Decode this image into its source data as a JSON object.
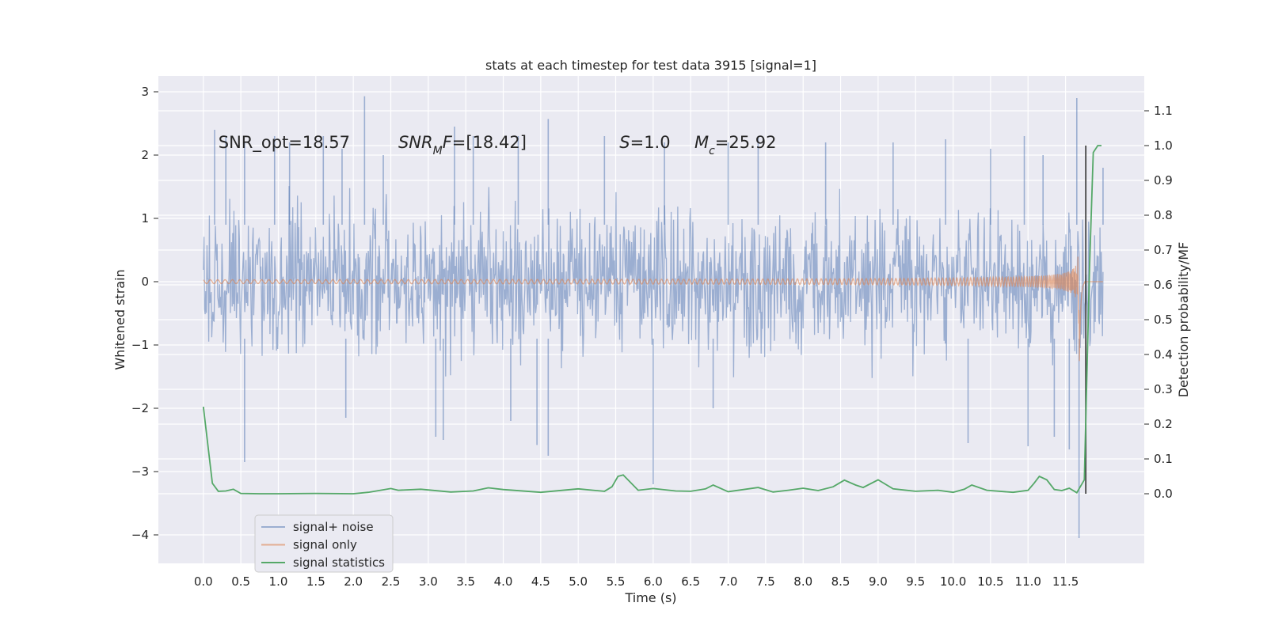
{
  "chart_data": {
    "type": "line",
    "title": "stats at each timestep for test data 3915 [signal=1]",
    "xlabel": "Time (s)",
    "ylabel": "Whitened strain",
    "y2label": "Detection probability/MF",
    "xlim": [
      -0.6,
      12.55
    ],
    "ylim": [
      -4.45,
      3.25
    ],
    "y2lim": [
      -0.2,
      1.2
    ],
    "x_ticks": [
      0.0,
      0.5,
      1.0,
      1.5,
      2.0,
      2.5,
      3.0,
      3.5,
      4.0,
      4.5,
      5.0,
      5.5,
      6.0,
      6.5,
      7.0,
      7.5,
      8.0,
      8.5,
      9.0,
      9.5,
      10.0,
      10.5,
      11.0,
      11.5
    ],
    "x_tick_labels": [
      "0.0",
      "0.5",
      "1.0",
      "1.5",
      "2.0",
      "2.5",
      "3.0",
      "3.5",
      "4.0",
      "4.5",
      "5.0",
      "5.5",
      "6.0",
      "6.5",
      "7.0",
      "7.5",
      "8.0",
      "8.5",
      "9.0",
      "9.5",
      "10.0",
      "10.5",
      "11.0",
      "11.5"
    ],
    "y_ticks": [
      -4,
      -3,
      -2,
      -1,
      0,
      1,
      2,
      3
    ],
    "y_tick_labels": [
      "−4",
      "−3",
      "−2",
      "−1",
      "0",
      "1",
      "2",
      "3"
    ],
    "y2_ticks": [
      0.0,
      0.1,
      0.2,
      0.3,
      0.4,
      0.5,
      0.6,
      0.7,
      0.8,
      0.9,
      1.0,
      1.1
    ],
    "y2_tick_labels": [
      "0.0",
      "0.1",
      "0.2",
      "0.3",
      "0.4",
      "0.5",
      "0.6",
      "0.7",
      "0.8",
      "0.9",
      "1.0",
      "1.1"
    ],
    "grid": true,
    "legend_position": "lower-left",
    "background": "#eaeaf2",
    "annotations": [
      {
        "parts": [
          {
            "t": "SNR_opt=18.57"
          }
        ],
        "x": 0.2,
        "y": 2.2
      },
      {
        "parts": [
          {
            "t": "SNR",
            "it": true
          },
          {
            "t": "M",
            "it": true,
            "sub": true
          },
          {
            "t": "F",
            "it": true
          },
          {
            "t": "=[18.42]"
          }
        ],
        "x": 2.6,
        "y": 2.2
      },
      {
        "parts": [
          {
            "t": "S",
            "it": true
          },
          {
            "t": "=1.0"
          }
        ],
        "x": 5.55,
        "y": 2.2
      },
      {
        "parts": [
          {
            "t": "M",
            "it": true
          },
          {
            "t": "c",
            "it": true,
            "sub": true
          },
          {
            "t": "=25.92"
          }
        ],
        "x": 6.55,
        "y": 2.2
      }
    ],
    "series": [
      {
        "name": "signal+ noise",
        "axis": "left",
        "color": "#4c72b0",
        "opacity": 0.5,
        "x_range": [
          0.0,
          12.0
        ],
        "envelope": {
          "typical": 1.15,
          "dense": 0.55
        },
        "peaks": [
          {
            "x": 0.15,
            "y": 2.4
          },
          {
            "x": 0.3,
            "y": 2.3
          },
          {
            "x": 0.55,
            "y": 2.2
          },
          {
            "x": 0.95,
            "y": 2.3
          },
          {
            "x": 1.15,
            "y": 2.2
          },
          {
            "x": 1.6,
            "y": 2.3
          },
          {
            "x": 1.85,
            "y": 2.1
          },
          {
            "x": 2.15,
            "y": 2.93
          },
          {
            "x": 2.4,
            "y": 2.0
          },
          {
            "x": 3.35,
            "y": 2.45
          },
          {
            "x": 3.6,
            "y": 2.3
          },
          {
            "x": 4.2,
            "y": 2.3
          },
          {
            "x": 4.6,
            "y": 2.57
          },
          {
            "x": 5.35,
            "y": 2.3
          },
          {
            "x": 6.15,
            "y": 2.2
          },
          {
            "x": 7.0,
            "y": 2.2
          },
          {
            "x": 7.4,
            "y": 2.3
          },
          {
            "x": 8.3,
            "y": 2.2
          },
          {
            "x": 9.2,
            "y": 2.2
          },
          {
            "x": 9.9,
            "y": 2.25
          },
          {
            "x": 10.5,
            "y": 2.1
          },
          {
            "x": 10.95,
            "y": 2.3
          },
          {
            "x": 11.2,
            "y": 2.0
          },
          {
            "x": 11.65,
            "y": 2.9
          },
          {
            "x": 12.0,
            "y": 1.8
          }
        ],
        "troughs": [
          {
            "x": 0.55,
            "y": -2.85
          },
          {
            "x": 1.9,
            "y": -2.15
          },
          {
            "x": 3.1,
            "y": -2.45
          },
          {
            "x": 3.2,
            "y": -2.5
          },
          {
            "x": 4.1,
            "y": -2.2
          },
          {
            "x": 4.45,
            "y": -2.58
          },
          {
            "x": 4.6,
            "y": -2.75
          },
          {
            "x": 6.0,
            "y": -3.2
          },
          {
            "x": 6.8,
            "y": -2.0
          },
          {
            "x": 10.2,
            "y": -2.55
          },
          {
            "x": 11.0,
            "y": -2.6
          },
          {
            "x": 11.35,
            "y": -2.45
          },
          {
            "x": 11.55,
            "y": -2.65
          },
          {
            "x": 11.68,
            "y": -4.05
          }
        ]
      },
      {
        "name": "signal only",
        "axis": "left",
        "color": "#dd8452",
        "opacity": 0.6,
        "x_range": [
          0.0,
          12.0
        ],
        "chirp": {
          "start_amp": 0.01,
          "peak_amp": 2.9,
          "merger_x": 11.68,
          "ringdown_end_x": 11.75
        }
      },
      {
        "name": "signal statistics",
        "axis": "right",
        "color": "#55a868",
        "opacity": 1.0,
        "points": [
          [
            0.0,
            0.25
          ],
          [
            0.12,
            0.03
          ],
          [
            0.2,
            0.007
          ],
          [
            0.3,
            0.008
          ],
          [
            0.4,
            0.013
          ],
          [
            0.5,
            0.001
          ],
          [
            0.75,
            0.0
          ],
          [
            1.0,
            0.0
          ],
          [
            1.5,
            0.001
          ],
          [
            2.0,
            0.0
          ],
          [
            2.2,
            0.004
          ],
          [
            2.5,
            0.015
          ],
          [
            2.6,
            0.01
          ],
          [
            2.9,
            0.013
          ],
          [
            3.3,
            0.005
          ],
          [
            3.6,
            0.008
          ],
          [
            3.8,
            0.017
          ],
          [
            4.0,
            0.012
          ],
          [
            4.5,
            0.004
          ],
          [
            5.0,
            0.014
          ],
          [
            5.2,
            0.01
          ],
          [
            5.35,
            0.007
          ],
          [
            5.45,
            0.02
          ],
          [
            5.53,
            0.05
          ],
          [
            5.6,
            0.054
          ],
          [
            5.8,
            0.01
          ],
          [
            6.0,
            0.015
          ],
          [
            6.3,
            0.008
          ],
          [
            6.5,
            0.007
          ],
          [
            6.7,
            0.014
          ],
          [
            6.8,
            0.025
          ],
          [
            7.0,
            0.006
          ],
          [
            7.4,
            0.018
          ],
          [
            7.6,
            0.005
          ],
          [
            7.8,
            0.01
          ],
          [
            8.0,
            0.016
          ],
          [
            8.2,
            0.009
          ],
          [
            8.4,
            0.02
          ],
          [
            8.55,
            0.039
          ],
          [
            8.7,
            0.025
          ],
          [
            8.8,
            0.018
          ],
          [
            9.0,
            0.04
          ],
          [
            9.2,
            0.014
          ],
          [
            9.5,
            0.007
          ],
          [
            9.8,
            0.01
          ],
          [
            10.0,
            0.004
          ],
          [
            10.15,
            0.013
          ],
          [
            10.25,
            0.025
          ],
          [
            10.45,
            0.01
          ],
          [
            10.8,
            0.004
          ],
          [
            11.0,
            0.01
          ],
          [
            11.08,
            0.03
          ],
          [
            11.15,
            0.05
          ],
          [
            11.25,
            0.04
          ],
          [
            11.35,
            0.012
          ],
          [
            11.45,
            0.009
          ],
          [
            11.55,
            0.016
          ],
          [
            11.65,
            0.003
          ],
          [
            11.75,
            0.04
          ],
          [
            11.82,
            0.65
          ],
          [
            11.87,
            0.98
          ],
          [
            11.93,
            1.0
          ],
          [
            11.98,
            1.0
          ]
        ]
      }
    ],
    "vertical_line": {
      "x": 11.77,
      "y2_from": 0.0,
      "y2_to": 1.0,
      "color": "#444444"
    }
  }
}
